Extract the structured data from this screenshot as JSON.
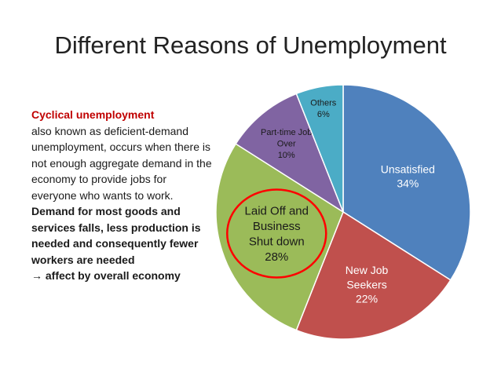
{
  "slide": {
    "title": "Different Reasons of Unemployment"
  },
  "side_text": {
    "heading": "Cyclical unemployment",
    "body": "also known as deficient-demand unemployment, occurs when there is not enough aggregate demand in the economy to provide jobs for everyone who wants to work.",
    "bold": "Demand for most goods and services falls, less production is needed and consequently fewer workers are needed",
    "arrow_line": "→ affect by overall economy"
  },
  "chart_data": {
    "type": "pie",
    "title": "",
    "slices": [
      {
        "name": "Unsatisfied",
        "value": 34,
        "label": "34%",
        "color": "#4f81bd",
        "label_color": "#ffffff"
      },
      {
        "name": "New Job Seekers",
        "value": 22,
        "label": "22%",
        "color": "#c0504d",
        "label_color": "#ffffff"
      },
      {
        "name": "Laid Off and Business Shut down",
        "value": 28,
        "label": "28%",
        "color": "#9bbb59",
        "label_color": "#1a1a1a"
      },
      {
        "name": "Part-time Job Over",
        "value": 10,
        "label": "10%",
        "color": "#8064a2",
        "label_color": "#1a1a1a"
      },
      {
        "name": "Others",
        "value": 6,
        "label": "6%",
        "color": "#4bacc6",
        "label_color": "#1a1a1a"
      }
    ],
    "start": "12 o'clock",
    "direction": "clockwise",
    "highlighted_slice": "Laid Off and Business Shut down",
    "highlight_color": "#ff0000"
  }
}
